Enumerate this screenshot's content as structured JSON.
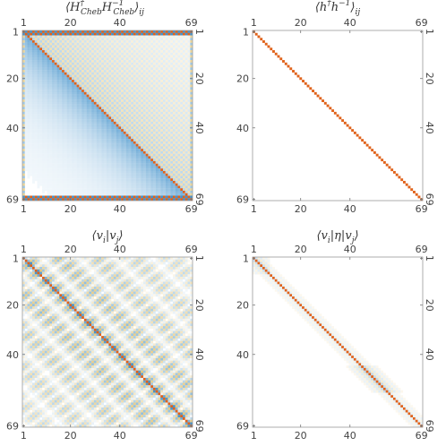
{
  "chart_data": [
    {
      "type": "heatmap",
      "title_parts": [
        "⟨",
        "H",
        "†",
        "Cheb",
        "H",
        "−1",
        "Cheb",
        "⟩",
        "ij"
      ],
      "matrix_size": 69,
      "ticks": [
        1,
        20,
        40,
        69
      ],
      "pattern": "chebyshev-ratio",
      "colors": {
        "negative": "#3b8dc8",
        "positive": "#d9a426",
        "strong": "#e0621a"
      }
    },
    {
      "type": "heatmap",
      "title_parts": [
        "⟨",
        "h",
        "†",
        "h",
        "−1",
        "⟩",
        "ij"
      ],
      "matrix_size": 69,
      "ticks": [
        1,
        20,
        40,
        69
      ],
      "pattern": "identity",
      "colors": {
        "negative": "#3b8dc8",
        "positive": "#d9a426",
        "strong": "#e0621a"
      }
    },
    {
      "type": "heatmap",
      "title_parts": [
        "⟨",
        "v",
        "i",
        "|",
        "v",
        "j",
        "⟩"
      ],
      "matrix_size": 69,
      "ticks": [
        1,
        20,
        40,
        69
      ],
      "pattern": "overlap",
      "colors": {
        "negative": "#3b8dc8",
        "positive": "#d9a426",
        "strong": "#e0621a"
      }
    },
    {
      "type": "heatmap",
      "title_parts": [
        "⟨",
        "v",
        "i",
        "|η|",
        "v",
        "j",
        "⟩"
      ],
      "matrix_size": 69,
      "ticks": [
        1,
        20,
        40,
        69
      ],
      "pattern": "metric",
      "colors": {
        "negative": "#3b8dc8",
        "positive": "#d9a426",
        "strong": "#e0621a"
      }
    }
  ]
}
